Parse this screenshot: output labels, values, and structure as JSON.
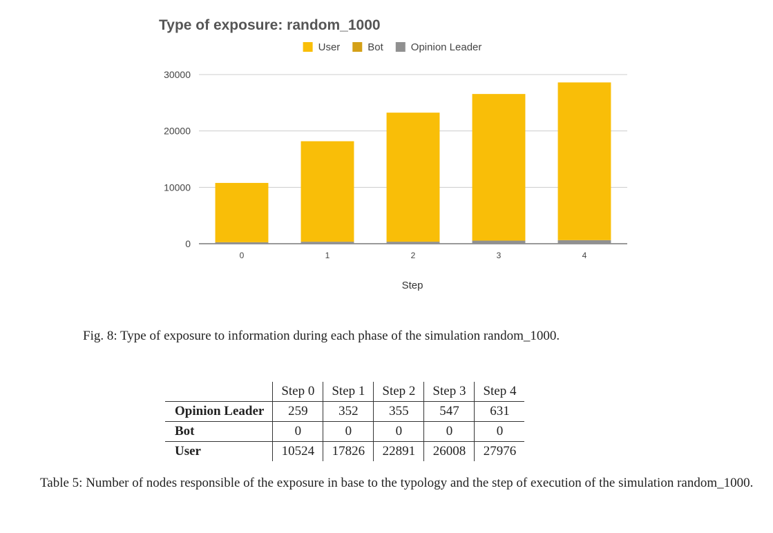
{
  "chart_data": {
    "type": "bar",
    "stacked": true,
    "title": "Type of exposure: random_1000",
    "xlabel": "Step",
    "ylabel": "",
    "categories": [
      "0",
      "1",
      "2",
      "3",
      "4"
    ],
    "ylim": [
      0,
      30000
    ],
    "yticks": [
      0,
      10000,
      20000,
      30000
    ],
    "grid": true,
    "legend_position": "top",
    "series": [
      {
        "name": "User",
        "values": [
          10524,
          17826,
          22891,
          26008,
          27976
        ],
        "color": "#F9BE08"
      },
      {
        "name": "Bot",
        "values": [
          0,
          0,
          0,
          0,
          0
        ],
        "color": "#D4A017"
      },
      {
        "name": "Opinion Leader",
        "values": [
          259,
          352,
          355,
          547,
          631
        ],
        "color": "#909090"
      }
    ]
  },
  "figure_caption": "Fig. 8: Type of exposure to information during each phase of the simulation random_1000.",
  "table": {
    "columns": [
      "Step 0",
      "Step 1",
      "Step 2",
      "Step 3",
      "Step 4"
    ],
    "rows": [
      {
        "label": "Opinion Leader",
        "values": [
          "259",
          "352",
          "355",
          "547",
          "631"
        ]
      },
      {
        "label": "Bot",
        "values": [
          "0",
          "0",
          "0",
          "0",
          "0"
        ]
      },
      {
        "label": "User",
        "values": [
          "10524",
          "17826",
          "22891",
          "26008",
          "27976"
        ]
      }
    ]
  },
  "table_caption": "Table 5: Number of nodes responsible of the exposure in base to the typology and the step of execution of the simulation random_1000."
}
